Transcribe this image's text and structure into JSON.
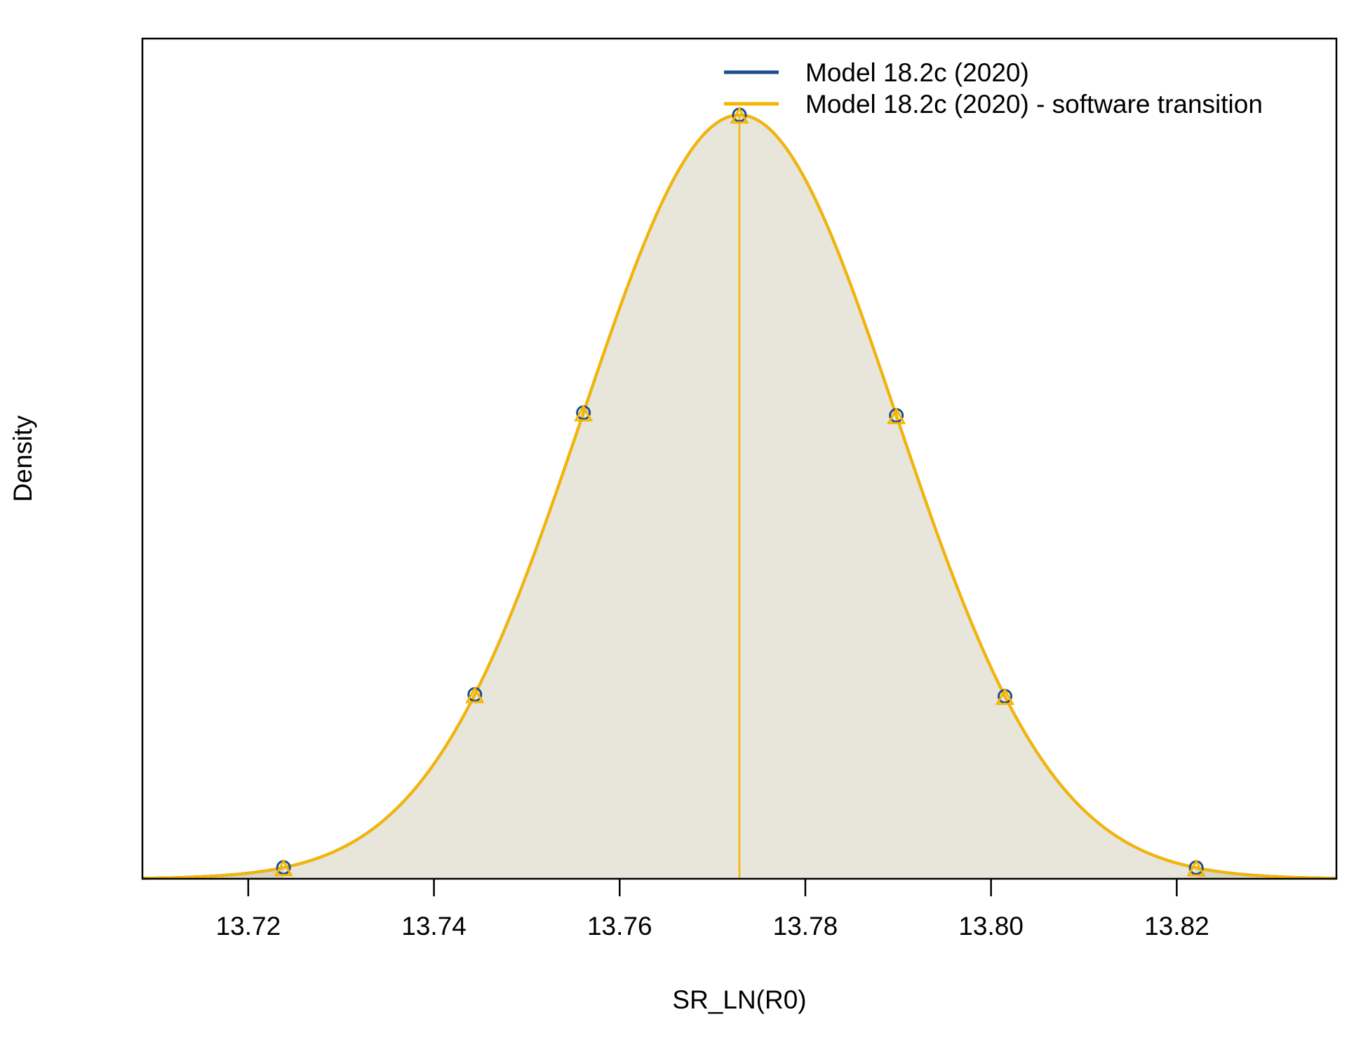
{
  "chart_data": {
    "type": "area",
    "xlabel": "SR_LN(R0)",
    "ylabel": "Density",
    "x_ticks": [
      "13.72",
      "13.74",
      "13.76",
      "13.78",
      "13.80",
      "13.82"
    ],
    "xlim": [
      13.7086,
      13.8372
    ],
    "ylim": [
      0,
      1.1
    ],
    "y_ticks_shown": false,
    "grid": false,
    "legend_position": "top-right",
    "distribution": "normal",
    "mean": 13.7729,
    "sd": 0.0169,
    "ci_95": [
      13.7238,
      13.8221
    ],
    "series": [
      {
        "name": "Model 18.2c (2020)",
        "color": "#1f4e8c",
        "marker": "circle",
        "markers_x": [
          13.7238,
          13.7444,
          13.7561,
          13.7729,
          13.7898,
          13.8015,
          13.8221
        ]
      },
      {
        "name": "Model 18.2c (2020) - software transition",
        "color": "#f7b500",
        "marker": "triangle",
        "markers_x": [
          13.7238,
          13.7444,
          13.7561,
          13.7729,
          13.7898,
          13.8015,
          13.8221
        ]
      }
    ],
    "fill_colors": {
      "interval": "#e8e6da",
      "tails": "#d9d6c0"
    }
  }
}
